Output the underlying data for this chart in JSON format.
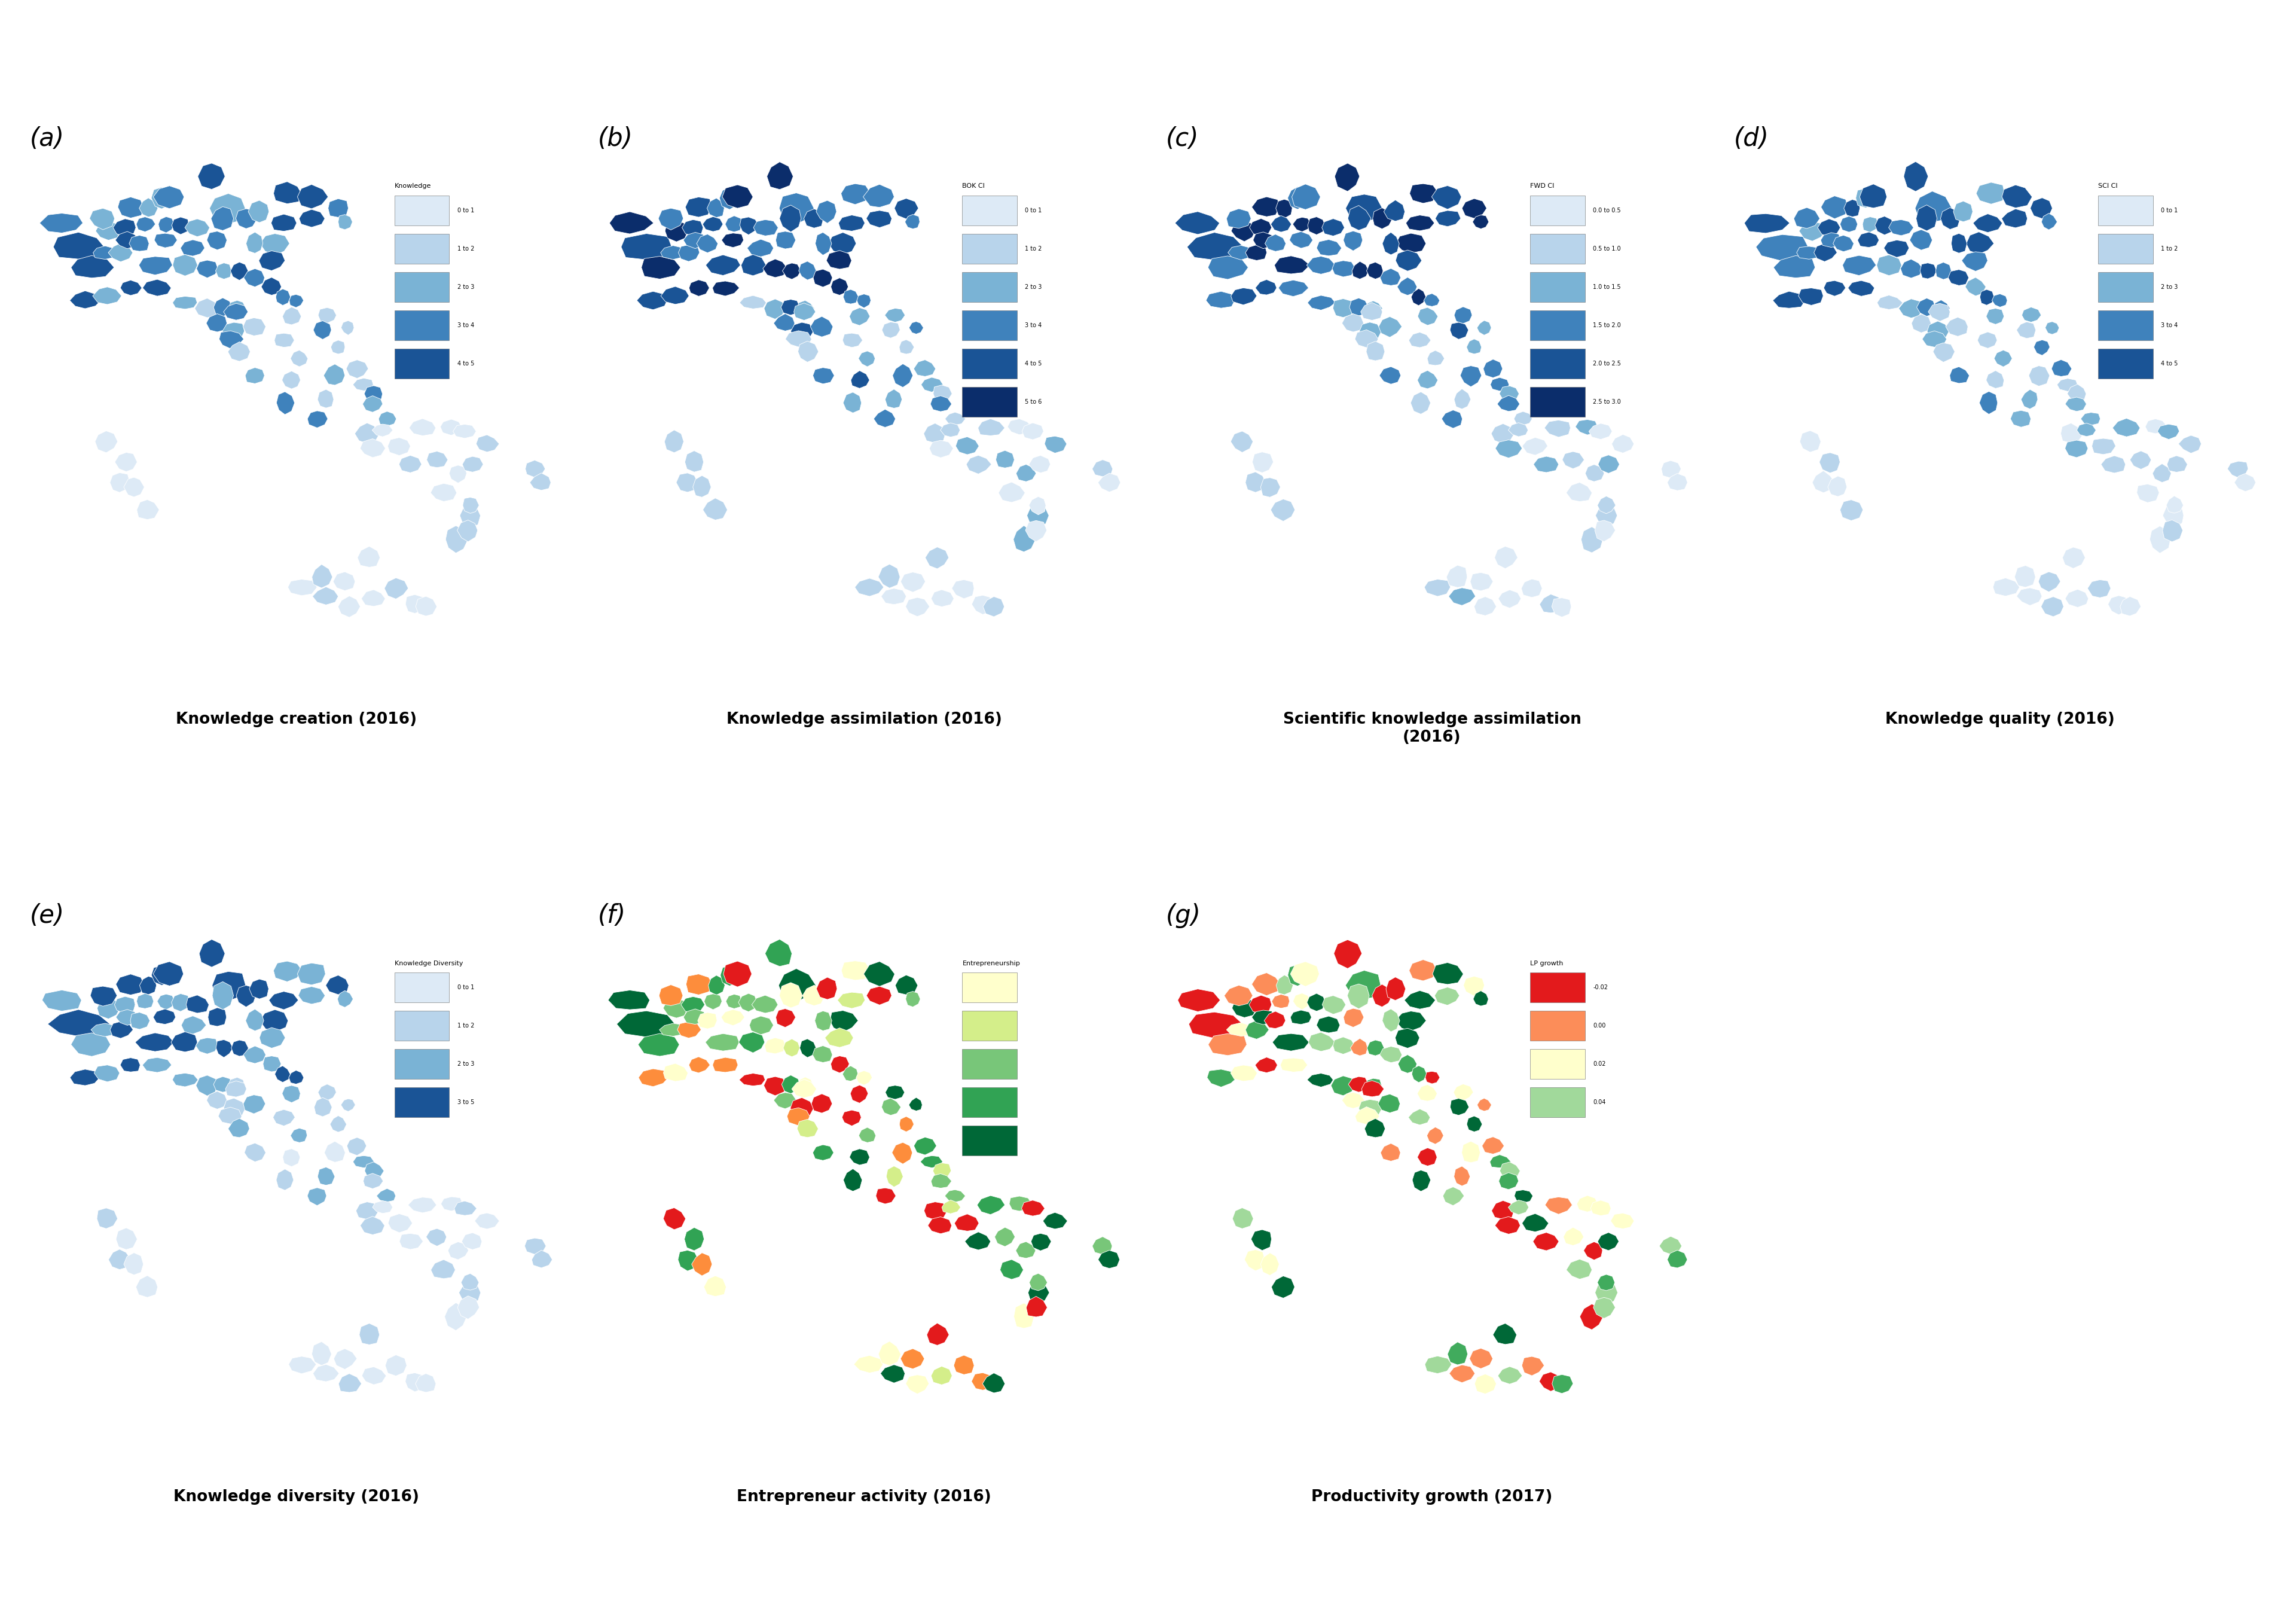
{
  "panels": [
    {
      "id": "a",
      "label": "(a)",
      "title": "Knowledge creation (2016)",
      "legend_title": "Knowledge",
      "legend_items": [
        "0 to 1",
        "1 to 2",
        "2 to 3",
        "3 to 4",
        "4 to 5"
      ],
      "palette_blues": [
        "#ddeaf6",
        "#b8d4eb",
        "#7ab3d5",
        "#3f82bc",
        "#1a5496",
        "#0b2d6b"
      ],
      "n_colors": 5,
      "seed": 42,
      "color_type": "blue"
    },
    {
      "id": "b",
      "label": "(b)",
      "title": "Knowledge assimilation (2016)",
      "legend_title": "BOK CI",
      "legend_items": [
        "0 to 1",
        "1 to 2",
        "2 to 3",
        "3 to 4",
        "4 to 5",
        "5 to 6"
      ],
      "palette_blues": [
        "#ddeaf6",
        "#b8d4eb",
        "#7ab3d5",
        "#3f82bc",
        "#1a5496",
        "#0b2d6b"
      ],
      "n_colors": 6,
      "seed": 77,
      "color_type": "blue"
    },
    {
      "id": "c",
      "label": "(c)",
      "title": "Scientific knowledge assimilation\n(2016)",
      "legend_title": "FWD CI",
      "legend_items": [
        "0.0 to 0.5",
        "0.5 to 1.0",
        "1.0 to 1.5",
        "1.5 to 2.0",
        "2.0 to 2.5",
        "2.5 to 3.0"
      ],
      "palette_blues": [
        "#ddeaf6",
        "#b8d4eb",
        "#7ab3d5",
        "#3f82bc",
        "#1a5496",
        "#0b2d6b"
      ],
      "n_colors": 6,
      "seed": 101,
      "color_type": "blue"
    },
    {
      "id": "d",
      "label": "(d)",
      "title": "Knowledge quality (2016)",
      "legend_title": "SCI CI",
      "legend_items": [
        "0 to 1",
        "1 to 2",
        "2 to 3",
        "3 to 4",
        "4 to 5"
      ],
      "palette_blues": [
        "#ddeaf6",
        "#b8d4eb",
        "#7ab3d5",
        "#3f82bc",
        "#1a5496",
        "#0b2d6b"
      ],
      "n_colors": 5,
      "seed": 200,
      "color_type": "blue"
    },
    {
      "id": "e",
      "label": "(e)",
      "title": "Knowledge diversity (2016)",
      "legend_title": "Knowledge Diversity",
      "legend_items": [
        "0 to 1",
        "1 to 2",
        "2 to 3",
        "3 to 5"
      ],
      "palette_blues": [
        "#ddeaf6",
        "#b8d4eb",
        "#7ab3d5",
        "#1a5496"
      ],
      "n_colors": 4,
      "seed": 55,
      "color_type": "blue"
    },
    {
      "id": "f",
      "label": "(f)",
      "title": "Entrepreneur activity (2016)",
      "legend_title": "Entrepreneurship",
      "legend_items": [
        "",
        "",
        "",
        "",
        ""
      ],
      "palette_go": [
        "#ffffcc",
        "#d4ee8a",
        "#78c679",
        "#31a354",
        "#006837",
        "#fd8d3c",
        "#e31a1c"
      ],
      "n_colors": 5,
      "seed": 66,
      "color_type": "go"
    },
    {
      "id": "g",
      "label": "(g)",
      "title": "Productivity growth (2017)",
      "legend_title": "LP growth",
      "legend_items": [
        "-0.02",
        "0.00",
        "0.02",
        "0.04"
      ],
      "palette_go": [
        "#e31a1c",
        "#fc8d59",
        "#ffffcc",
        "#a1d99b",
        "#41ab5d",
        "#006837"
      ],
      "n_colors": 4,
      "seed": 88,
      "color_type": "go"
    }
  ],
  "bg_color": "#ffffff",
  "border_color": "#b0b0b0",
  "label_fontsize": 30,
  "title_fontsize": 19,
  "legend_title_fontsize": 8,
  "legend_item_fontsize": 7
}
